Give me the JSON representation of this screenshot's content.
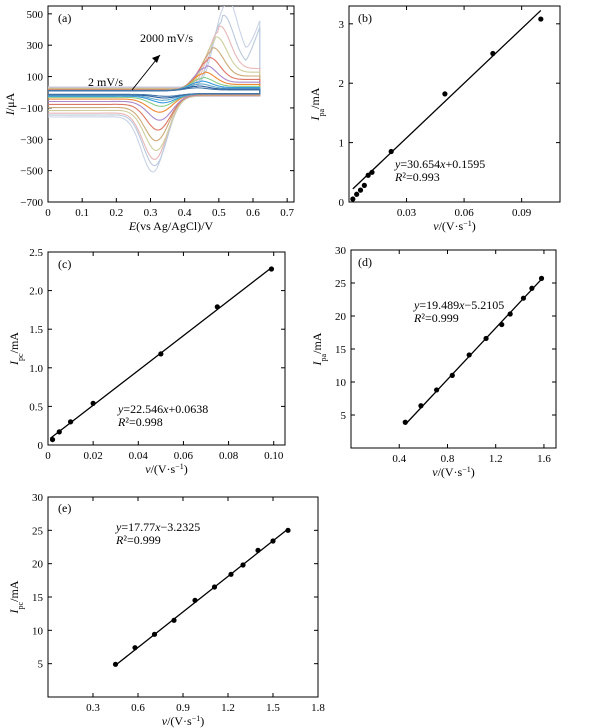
{
  "chart_data": [
    {
      "panel": "(a)",
      "type": "line",
      "xlabel_italic": "E",
      "xlabel_rest": "(vs Ag/AgCl)/V",
      "ylabel_italic": "I",
      "ylabel_rest": "/μA",
      "xlim": [
        0,
        0.72
      ],
      "ylim": [
        -700,
        550
      ],
      "xticks": [
        0,
        0.1,
        0.2,
        0.3,
        0.4,
        0.5,
        0.6,
        0.7
      ],
      "xtick_labels": [
        "0",
        "0.1",
        "0.2",
        "0.3",
        "0.4",
        "0.5",
        "0.6",
        "0.7"
      ],
      "yticks": [
        -700,
        -500,
        -300,
        -100,
        100,
        300,
        500
      ],
      "ytick_labels": [
        "−700",
        "−500",
        "−300",
        "−100",
        "100",
        "300",
        "500"
      ],
      "annotations": {
        "high": "2000 mV/s",
        "low": "2 mV/s"
      },
      "series": [
        {
          "color": "#4477aa",
          "ipa": 18,
          "ipc": -16,
          "epa": 0.43,
          "epc": 0.35
        },
        {
          "color": "#2b5f9e",
          "ipa": 28,
          "ipc": -25,
          "epa": 0.435,
          "epc": 0.345
        },
        {
          "color": "#66aacc",
          "ipa": 40,
          "ipc": -38,
          "epa": 0.44,
          "epc": 0.34
        },
        {
          "color": "#3399dd",
          "ipa": 55,
          "ipc": -52,
          "epa": 0.445,
          "epc": 0.34
        },
        {
          "color": "#88cc88",
          "ipa": 75,
          "ipc": -72,
          "epa": 0.45,
          "epc": 0.335
        },
        {
          "color": "#ee8833",
          "ipa": 105,
          "ipc": -105,
          "epa": 0.455,
          "epc": 0.33
        },
        {
          "color": "#aa88cc",
          "ipa": 140,
          "ipc": -150,
          "epa": 0.46,
          "epc": 0.33
        },
        {
          "color": "#dd7766",
          "ipa": 185,
          "ipc": -205,
          "epa": 0.47,
          "epc": 0.325
        },
        {
          "color": "#ccaa77",
          "ipa": 240,
          "ipc": -265,
          "epa": 0.48,
          "epc": 0.32
        },
        {
          "color": "#cfcf9f",
          "ipa": 300,
          "ipc": -320,
          "epa": 0.49,
          "epc": 0.32
        },
        {
          "color": "#e8b7b7",
          "ipa": 360,
          "ipc": -370,
          "epa": 0.5,
          "epc": 0.315
        },
        {
          "color": "#b9c9dd",
          "ipa": 420,
          "ipc": -405,
          "epa": 0.51,
          "epc": 0.315
        },
        {
          "color": "#c9d3e6",
          "ipa": 520,
          "ipc": -440,
          "epa": 0.52,
          "epc": 0.31
        }
      ]
    },
    {
      "panel": "(b)",
      "type": "scatter",
      "xlabel_italic": "v",
      "xlabel_rest": "/(V·s",
      "xlabel_sup": "−1",
      "xlabel_close": ")",
      "ylabel_italic": "I",
      "ylabel_sub": "pa",
      "ylabel_rest": "/mA",
      "xlim": [
        0,
        0.11
      ],
      "ylim": [
        0,
        3.3
      ],
      "xticks": [
        0.03,
        0.06,
        0.09
      ],
      "xtick_labels": [
        "0.03",
        "0.06",
        "0.09"
      ],
      "yticks": [
        0,
        1,
        2,
        3
      ],
      "ytick_labels": [
        "0",
        "1",
        "2",
        "3"
      ],
      "x": [
        0.002,
        0.004,
        0.006,
        0.008,
        0.01,
        0.012,
        0.022,
        0.05,
        0.075,
        0.1
      ],
      "y": [
        0.05,
        0.13,
        0.2,
        0.28,
        0.45,
        0.5,
        0.85,
        1.82,
        2.5,
        3.08
      ],
      "fit": {
        "slope": 30.654,
        "intercept": 0.1595,
        "x_range": [
          0.002,
          0.1
        ]
      },
      "equation": "y=30.654x+0.1595",
      "r2": "R²=0.993"
    },
    {
      "panel": "(c)",
      "type": "scatter",
      "xlabel_italic": "v",
      "xlabel_rest": "/(V·s",
      "xlabel_sup": "−1",
      "xlabel_close": ")",
      "ylabel_italic": "I",
      "ylabel_sub": "pc",
      "ylabel_rest": "/mA",
      "xlim": [
        0,
        0.105
      ],
      "ylim": [
        0,
        2.5
      ],
      "xticks": [
        0,
        0.02,
        0.04,
        0.06,
        0.08,
        0.1
      ],
      "xtick_labels": [
        "0",
        "0.02",
        "0.04",
        "0.06",
        "0.08",
        "0.10"
      ],
      "yticks": [
        0,
        0.5,
        1.0,
        1.5,
        2.0,
        2.5
      ],
      "ytick_labels": [
        "0",
        "0.5",
        "1.0",
        "1.5",
        "2.0",
        "2.5"
      ],
      "x": [
        0.002,
        0.005,
        0.01,
        0.02,
        0.05,
        0.075,
        0.099
      ],
      "y": [
        0.07,
        0.17,
        0.3,
        0.54,
        1.18,
        1.79,
        2.28
      ],
      "fit": {
        "slope": 22.546,
        "intercept": 0.0638,
        "x_range": [
          0.001,
          0.099
        ]
      },
      "equation": "y=22.546x+0.0638",
      "r2": "R²=0.998"
    },
    {
      "panel": "(d)",
      "type": "scatter",
      "xlabel_italic": "v",
      "xlabel_rest": "/(V·s",
      "xlabel_sup": "−1",
      "xlabel_close": ")",
      "ylabel_italic": "I",
      "ylabel_sub": "pa",
      "ylabel_rest": "/mA",
      "xlim": [
        0,
        1.7
      ],
      "ylim": [
        0,
        30
      ],
      "xticks": [
        0.4,
        0.8,
        1.2,
        1.6
      ],
      "xtick_labels": [
        "0.4",
        "0.8",
        "1.2",
        "1.6"
      ],
      "yticks": [
        5,
        10,
        15,
        20,
        25,
        30
      ],
      "ytick_labels": [
        "5",
        "10",
        "15",
        "20",
        "25",
        "30"
      ],
      "x": [
        0.45,
        0.58,
        0.71,
        0.84,
        0.98,
        1.12,
        1.25,
        1.32,
        1.43,
        1.5,
        1.58
      ],
      "y": [
        3.9,
        6.4,
        8.8,
        11.0,
        14.1,
        16.6,
        18.7,
        20.3,
        22.7,
        24.2,
        25.7
      ],
      "fit": {
        "slope": 19.489,
        "intercept": -5.2105,
        "x_range": [
          0.45,
          1.58
        ]
      },
      "equation": "y=19.489x−5.2105",
      "r2": "R²=0.999"
    },
    {
      "panel": "(e)",
      "type": "scatter",
      "xlabel_italic": "v",
      "xlabel_rest": "/(V·s",
      "xlabel_sup": "−1",
      "xlabel_close": ")",
      "ylabel_italic": "I",
      "ylabel_sub": "pc",
      "ylabel_rest": "/mA",
      "xlim": [
        0,
        1.8
      ],
      "ylim": [
        0,
        30
      ],
      "xticks": [
        0.3,
        0.6,
        0.9,
        1.2,
        1.5,
        1.8
      ],
      "xtick_labels": [
        "0.3",
        "0.6",
        "0.9",
        "1.2",
        "1.5",
        "1.8"
      ],
      "yticks": [
        5,
        10,
        15,
        20,
        25,
        30
      ],
      "ytick_labels": [
        "5",
        "10",
        "15",
        "20",
        "25",
        "30"
      ],
      "x": [
        0.45,
        0.58,
        0.71,
        0.84,
        0.98,
        1.11,
        1.22,
        1.3,
        1.4,
        1.5,
        1.6
      ],
      "y": [
        4.9,
        7.4,
        9.4,
        11.5,
        14.5,
        16.5,
        18.4,
        19.8,
        22.0,
        23.4,
        25.0
      ],
      "fit": {
        "slope": 17.77,
        "intercept": -3.2325,
        "x_range": [
          0.45,
          1.6
        ]
      },
      "equation": "y=17.77x−3.2325",
      "r2": "R²=0.999"
    }
  ]
}
